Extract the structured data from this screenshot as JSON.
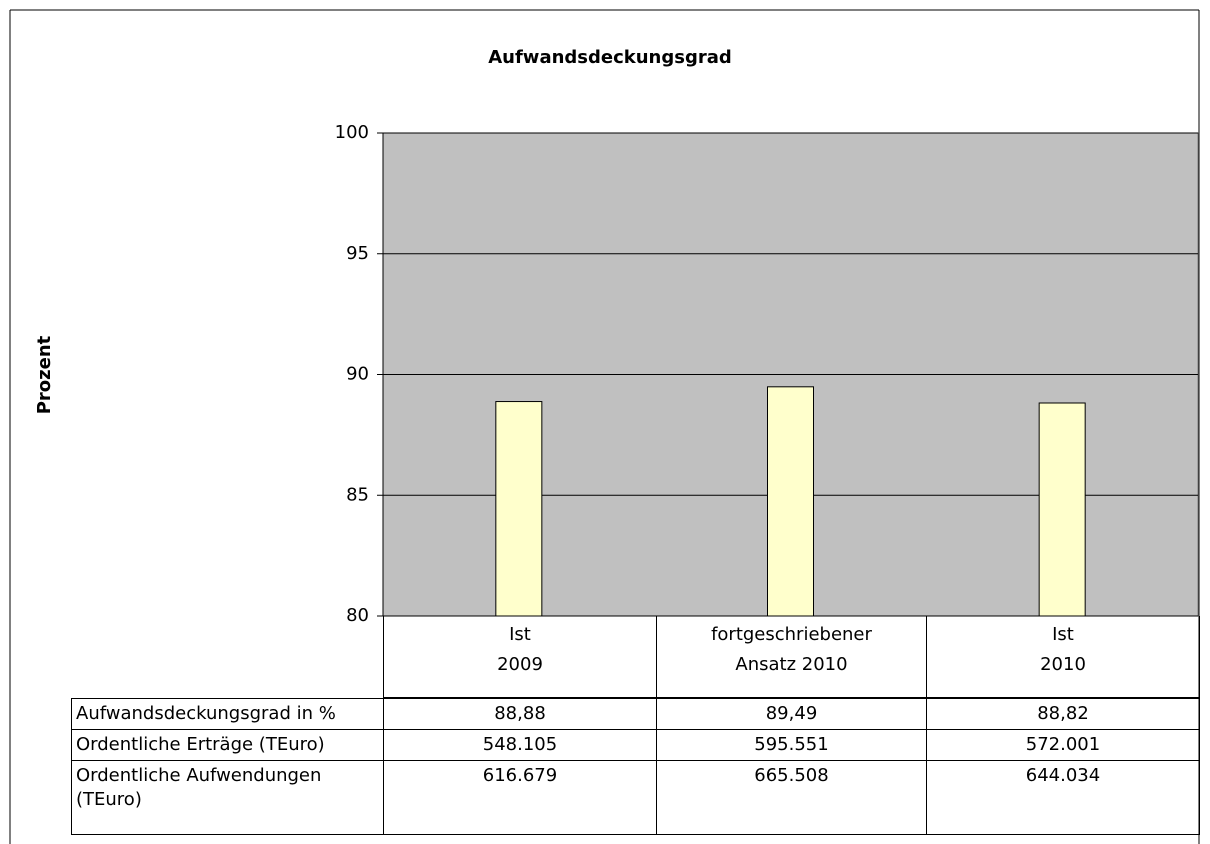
{
  "chart_data": {
    "type": "bar",
    "title": "Aufwandsdeckungsgrad",
    "ylabel": "Prozent",
    "categories": [
      [
        "Ist",
        "2009"
      ],
      [
        "fortgeschriebener",
        "Ansatz 2010"
      ],
      [
        "Ist",
        "2010"
      ]
    ],
    "series": [
      {
        "name": "Aufwandsdeckungsgrad in %",
        "color": "#ffffcc",
        "values": [
          88.88,
          89.49,
          88.82
        ],
        "value_labels": [
          "88,88",
          "89,49",
          "88,82"
        ]
      }
    ],
    "table_rows": [
      {
        "name": "Ordentliche Erträge (TEuro)",
        "values": [
          548105,
          595551,
          572001
        ],
        "value_labels": [
          "548.105",
          "595.551",
          "572.001"
        ]
      },
      {
        "name": "Ordentliche Aufwendungen (TEuro)",
        "values": [
          616679,
          665508,
          644034
        ],
        "value_labels": [
          "616.679",
          "665.508",
          "644.034"
        ]
      }
    ],
    "ylim": [
      80,
      100
    ],
    "yticks": [
      80,
      85,
      90,
      95,
      100
    ],
    "grid": true,
    "plot_background": "#c0c0c0"
  }
}
